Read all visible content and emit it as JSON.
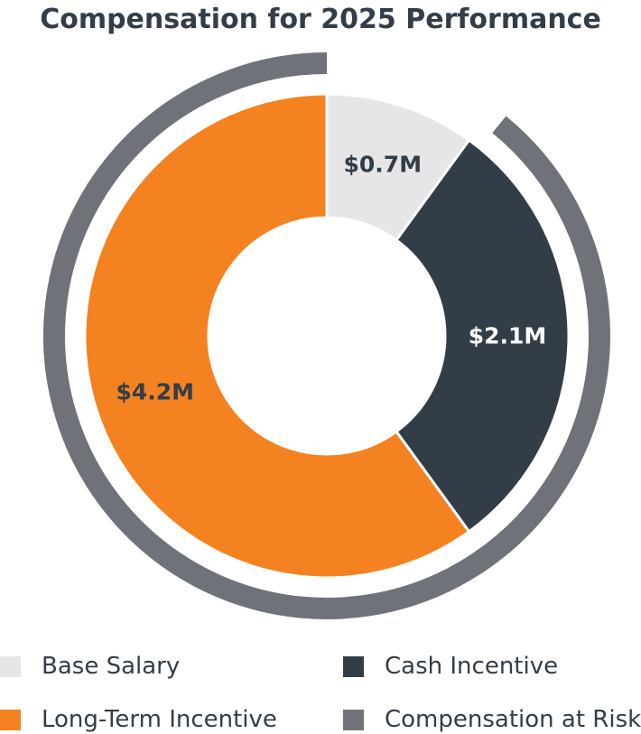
{
  "chart_data": {
    "type": "pie",
    "title": "Compensation for 2025 Performance",
    "donut": true,
    "slices": [
      {
        "name": "Base Salary",
        "value": 0.7,
        "label": "$0.7M",
        "color": "#e6e6e8",
        "label_color": "#333d47"
      },
      {
        "name": "Cash Incentive",
        "value": 2.1,
        "label": "$2.1M",
        "color": "#333d47",
        "label_color": "#ffffff"
      },
      {
        "name": "Long-Term Incentive",
        "value": 4.2,
        "label": "$4.2M",
        "color": "#f58220",
        "label_color": "#333d47"
      }
    ],
    "outer_ring": {
      "name": "Compensation at Risk",
      "covers": [
        "Cash Incentive",
        "Long-Term Incentive"
      ],
      "color": "#707279"
    },
    "legend": {
      "placement": "bottom",
      "entries": [
        {
          "label": "Base Salary",
          "color": "#e6e6e8"
        },
        {
          "label": "Cash Incentive",
          "color": "#333d47"
        },
        {
          "label": "Long-Term Incentive",
          "color": "#f58220"
        },
        {
          "label": "Compensation at Risk",
          "color": "#707279"
        }
      ]
    }
  }
}
